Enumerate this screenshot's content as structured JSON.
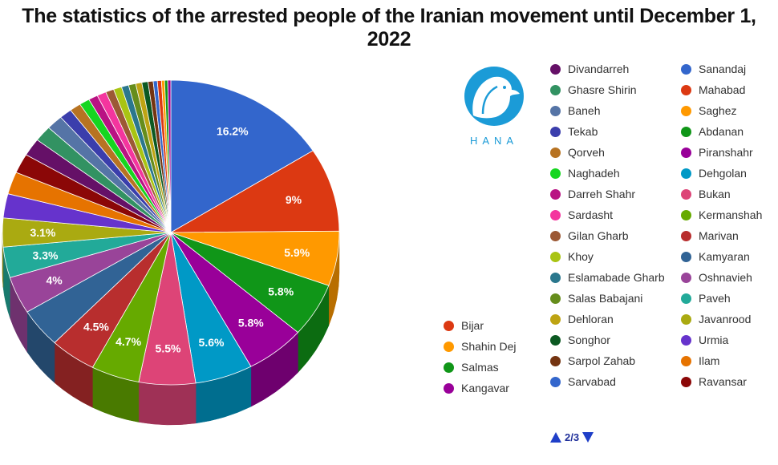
{
  "page": {
    "title": "The statistics of the arrested people of the Iranian movement until December 1, 2022"
  },
  "logo": {
    "text": "HANA",
    "icon": "dove-in-circle-icon",
    "color": "#1b9bd7"
  },
  "pager": {
    "label": "2/3"
  },
  "chart_data": {
    "type": "pie",
    "title": "The statistics of the arrested people of the Iranian movement until December 1, 2022",
    "unit": "%",
    "start_angle_deg": 0,
    "direction": "clockwise",
    "legend_placement": "right",
    "slices": [
      {
        "label": "Sanandaj",
        "value": 16.2,
        "color": "#3366cc",
        "show_label": true
      },
      {
        "label": "Mahabad",
        "value": 9,
        "color": "#dc3912",
        "show_label": true
      },
      {
        "label": "Saghez",
        "value": 5.9,
        "color": "#ff9900",
        "show_label": true
      },
      {
        "label": "Abdanan",
        "value": 5.8,
        "color": "#109618",
        "show_label": true
      },
      {
        "label": "Piranshahr",
        "value": 5.8,
        "color": "#990099",
        "show_label": true
      },
      {
        "label": "Dehgolan",
        "value": 5.6,
        "color": "#0099c6",
        "show_label": true
      },
      {
        "label": "Bukan",
        "value": 5.5,
        "color": "#dd4477",
        "show_label": true
      },
      {
        "label": "Kermanshah",
        "value": 4.7,
        "color": "#66aa00",
        "show_label": true
      },
      {
        "label": "Marivan",
        "value": 4.5,
        "color": "#b82e2e",
        "show_label": true
      },
      {
        "label": "Kamyaran",
        "value": 4.2,
        "color": "#316395",
        "show_label": false
      },
      {
        "label": "Oshnavieh",
        "value": 4,
        "color": "#994499",
        "show_label": true
      },
      {
        "label": "Paveh",
        "value": 3.3,
        "color": "#22aa99",
        "show_label": true
      },
      {
        "label": "Javanrood",
        "value": 3.1,
        "color": "#aaaa11",
        "show_label": true
      },
      {
        "label": "Urmia",
        "value": 2.6,
        "color": "#6633cc",
        "show_label": false
      },
      {
        "label": "Ilam",
        "value": 2.4,
        "color": "#e67300",
        "show_label": false
      },
      {
        "label": "Ravansar",
        "value": 2.1,
        "color": "#8b0707",
        "show_label": false
      },
      {
        "label": "Divandarreh",
        "value": 1.9,
        "color": "#651067",
        "show_label": false
      },
      {
        "label": "Ghasre Shirin",
        "value": 1.7,
        "color": "#329262",
        "show_label": false
      },
      {
        "label": "Baneh",
        "value": 1.6,
        "color": "#5574a6",
        "show_label": false
      },
      {
        "label": "Tekab",
        "value": 1.2,
        "color": "#3b3eac",
        "show_label": false
      },
      {
        "label": "Qorveh",
        "value": 1.1,
        "color": "#b77322",
        "show_label": false
      },
      {
        "label": "Naghadeh",
        "value": 1,
        "color": "#16d620",
        "show_label": false
      },
      {
        "label": "Darreh Shahr",
        "value": 0.9,
        "color": "#b91383",
        "show_label": false
      },
      {
        "label": "Sardasht",
        "value": 0.9,
        "color": "#f4359e",
        "show_label": false
      },
      {
        "label": "Gilan Gharb",
        "value": 0.8,
        "color": "#9c5935",
        "show_label": false
      },
      {
        "label": "Khoy",
        "value": 0.8,
        "color": "#a9c413",
        "show_label": false
      },
      {
        "label": "Eslamabade Gharb",
        "value": 0.7,
        "color": "#2a778d",
        "show_label": false
      },
      {
        "label": "Salas Babajani",
        "value": 0.7,
        "color": "#668d1c",
        "show_label": false
      },
      {
        "label": "Dehloran",
        "value": 0.6,
        "color": "#bea413",
        "show_label": false
      },
      {
        "label": "Songhor",
        "value": 0.6,
        "color": "#0c5922",
        "show_label": false
      },
      {
        "label": "Sarpol Zahab",
        "value": 0.5,
        "color": "#743411",
        "show_label": false
      },
      {
        "label": "Sarvabad",
        "value": 0.4,
        "color": "#3366cc",
        "show_label": false
      },
      {
        "label": "Bijar",
        "value": 0.4,
        "color": "#dc3912",
        "show_label": false
      },
      {
        "label": "Shahin Dej",
        "value": 0.3,
        "color": "#ff9900",
        "show_label": false
      },
      {
        "label": "Salmas",
        "value": 0.3,
        "color": "#109618",
        "show_label": false
      },
      {
        "label": "Kangavar",
        "value": 0.3,
        "color": "#990099",
        "show_label": false
      }
    ],
    "legend_columns": [
      [
        "Bijar",
        "Shahin Dej",
        "Salmas",
        "Kangavar"
      ],
      [
        "Divandarreh",
        "Ghasre Shirin",
        "Baneh",
        "Tekab",
        "Qorveh",
        "Naghadeh",
        "Darreh Shahr",
        "Sardasht",
        "Gilan Gharb",
        "Khoy",
        "Eslamabade Gharb",
        "Salas Babajani",
        "Dehloran",
        "Songhor",
        "Sarpol Zahab",
        "Sarvabad"
      ],
      [
        "Sanandaj",
        "Mahabad",
        "Saghez",
        "Abdanan",
        "Piranshahr",
        "Dehgolan",
        "Bukan",
        "Kermanshah",
        "Marivan",
        "Kamyaran",
        "Oshnavieh",
        "Paveh",
        "Javanrood",
        "Urmia",
        "Ilam",
        "Ravansar"
      ]
    ]
  }
}
